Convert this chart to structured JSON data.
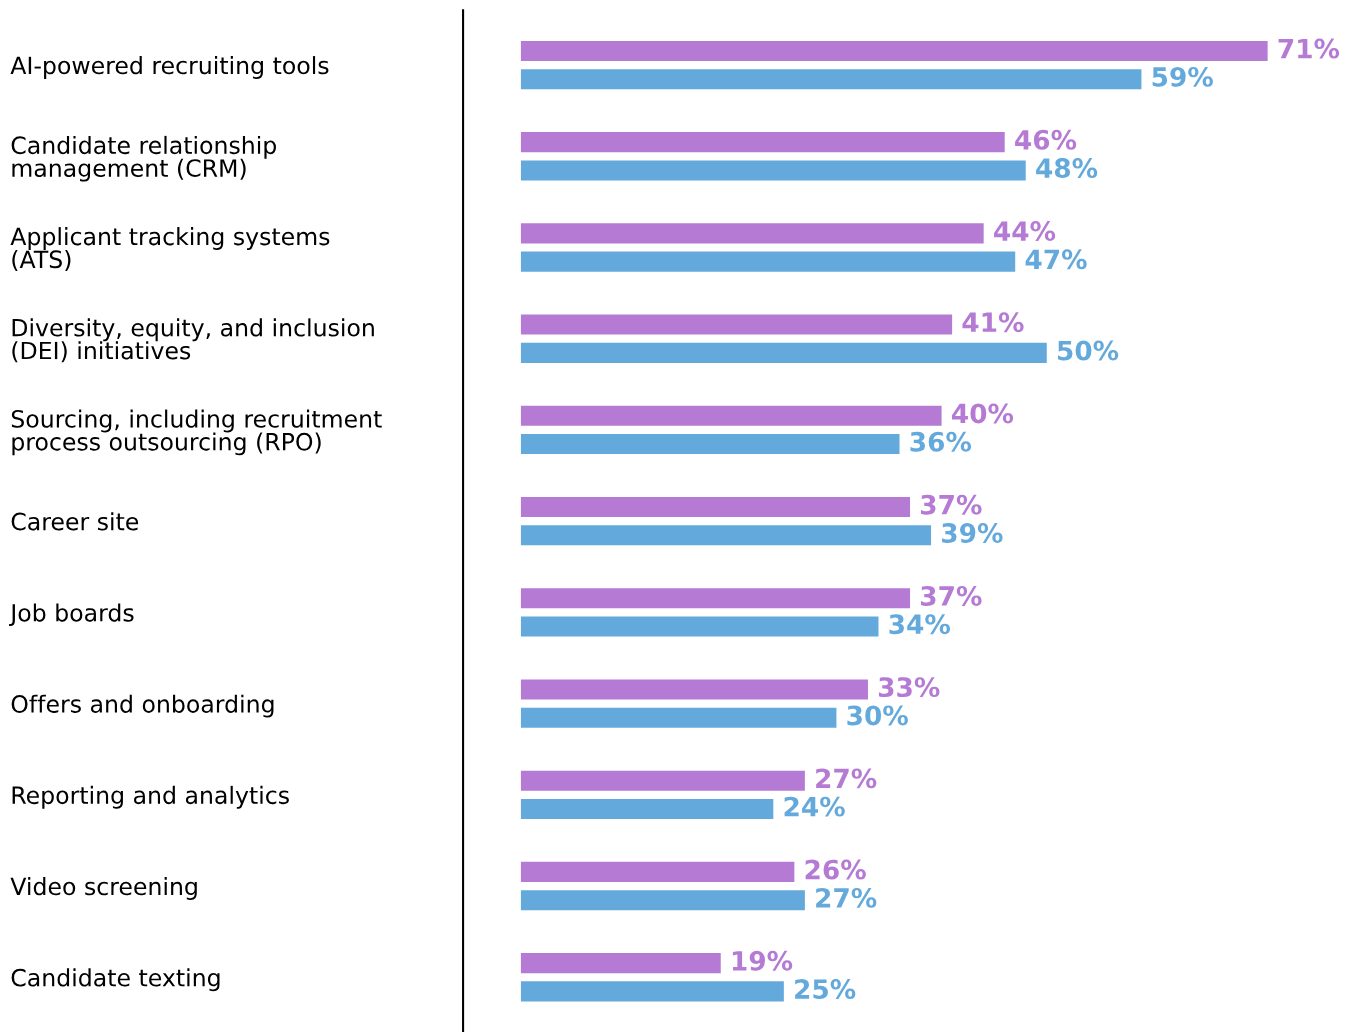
{
  "chart_data": {
    "type": "bar",
    "orientation": "horizontal",
    "xlim": [
      -5.5,
      71.2
    ],
    "tick_labels": "y",
    "categories": [
      "AI-powered recruiting tools",
      "Candidate relationship\nmanagement (CRM)",
      "Applicant tracking systems\n(ATS)",
      "Diversity, equity, and inclusion\n(DEI) initiatives",
      "Sourcing, including recruitment\nprocess outsourcing (RPO)",
      "Career site",
      "Job boards",
      "Offers and onboarding",
      "Reporting and analytics",
      "Video screening",
      "Candidate texting"
    ],
    "series": [
      {
        "color": "#b57bd4",
        "values": [
          71,
          46,
          44,
          41,
          40,
          37,
          37,
          33,
          27,
          26,
          19
        ],
        "value_labels": [
          "71%",
          "46%",
          "44%",
          "41%",
          "40%",
          "37%",
          "37%",
          "33%",
          "27%",
          "26%",
          "19%"
        ]
      },
      {
        "color": "#64a9dc",
        "values": [
          59,
          48,
          47,
          50,
          36,
          39,
          34,
          30,
          24,
          27,
          25
        ],
        "value_labels": [
          "59%",
          "48%",
          "47%",
          "50%",
          "36%",
          "39%",
          "34%",
          "30%",
          "24%",
          "27%",
          "25%"
        ]
      }
    ],
    "grid": false,
    "legend": false
  }
}
